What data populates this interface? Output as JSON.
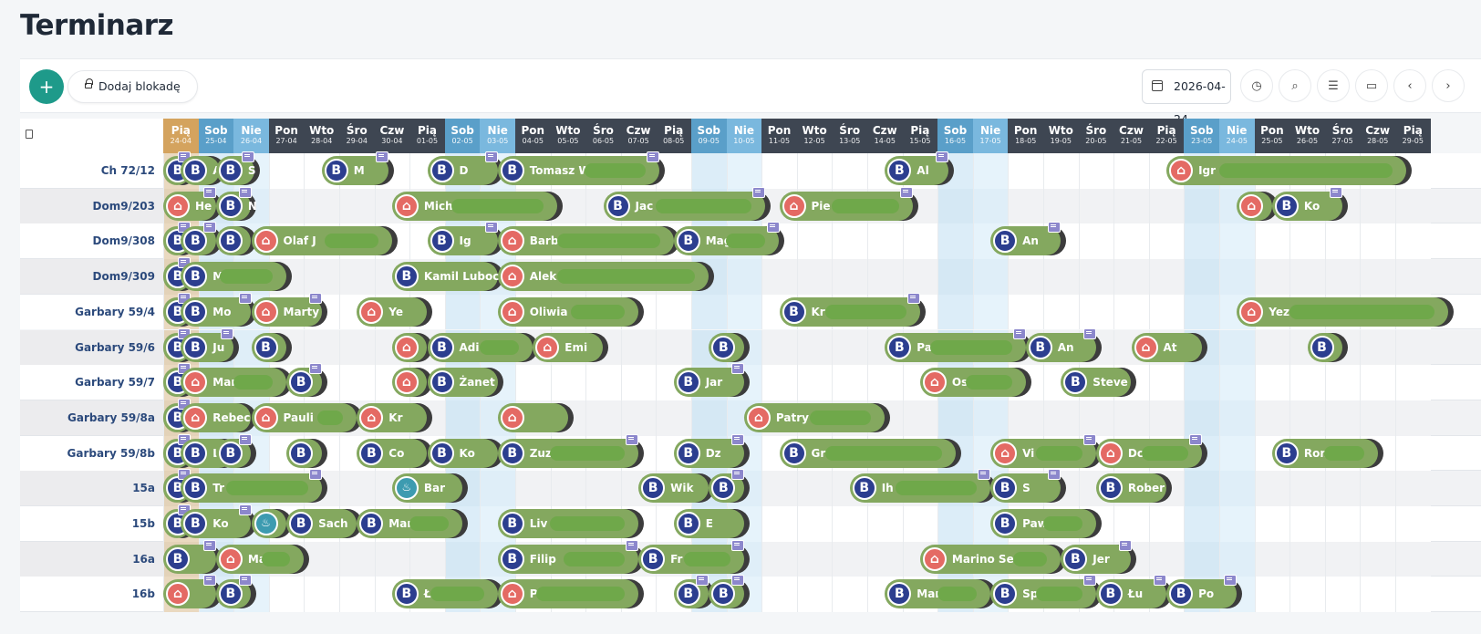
{
  "title": "Terminarz",
  "toolbar": {
    "add_label": "+",
    "block_label": "Dodaj blokadę",
    "date_value": "2026-04-24",
    "icons": [
      "history-icon",
      "search-icon",
      "filter-icon",
      "expand-icon",
      "prev-icon",
      "next-icon"
    ]
  },
  "colors": {
    "accent": "#1e9a8a",
    "weekday_header": "#3e4652",
    "saturday_header": "#5a9fc9",
    "sunday_header": "#7ab8de",
    "today_header": "#d4a35e",
    "booking_bar": "#84a85f",
    "booking_source": "#2c3e8f",
    "airbnb_source": "#e46a64"
  },
  "days": [
    {
      "name": "Pią",
      "date": "24-04",
      "kind": "today"
    },
    {
      "name": "Sob",
      "date": "25-04",
      "kind": "sat"
    },
    {
      "name": "Nie",
      "date": "26-04",
      "kind": "sun"
    },
    {
      "name": "Pon",
      "date": "27-04",
      "kind": "wd"
    },
    {
      "name": "Wto",
      "date": "28-04",
      "kind": "wd"
    },
    {
      "name": "Śro",
      "date": "29-04",
      "kind": "wd"
    },
    {
      "name": "Czw",
      "date": "30-04",
      "kind": "wd"
    },
    {
      "name": "Pią",
      "date": "01-05",
      "kind": "wd"
    },
    {
      "name": "Sob",
      "date": "02-05",
      "kind": "sat"
    },
    {
      "name": "Nie",
      "date": "03-05",
      "kind": "sun"
    },
    {
      "name": "Pon",
      "date": "04-05",
      "kind": "wd"
    },
    {
      "name": "Wto",
      "date": "05-05",
      "kind": "wd"
    },
    {
      "name": "Śro",
      "date": "06-05",
      "kind": "wd"
    },
    {
      "name": "Czw",
      "date": "07-05",
      "kind": "wd"
    },
    {
      "name": "Pią",
      "date": "08-05",
      "kind": "wd"
    },
    {
      "name": "Sob",
      "date": "09-05",
      "kind": "sat"
    },
    {
      "name": "Nie",
      "date": "10-05",
      "kind": "sun"
    },
    {
      "name": "Pon",
      "date": "11-05",
      "kind": "wd"
    },
    {
      "name": "Wto",
      "date": "12-05",
      "kind": "wd"
    },
    {
      "name": "Śro",
      "date": "13-05",
      "kind": "wd"
    },
    {
      "name": "Czw",
      "date": "14-05",
      "kind": "wd"
    },
    {
      "name": "Pią",
      "date": "15-05",
      "kind": "wd"
    },
    {
      "name": "Sob",
      "date": "16-05",
      "kind": "sat"
    },
    {
      "name": "Nie",
      "date": "17-05",
      "kind": "sun"
    },
    {
      "name": "Pon",
      "date": "18-05",
      "kind": "wd"
    },
    {
      "name": "Wto",
      "date": "19-05",
      "kind": "wd"
    },
    {
      "name": "Śro",
      "date": "20-05",
      "kind": "wd"
    },
    {
      "name": "Czw",
      "date": "21-05",
      "kind": "wd"
    },
    {
      "name": "Pią",
      "date": "22-05",
      "kind": "wd"
    },
    {
      "name": "Sob",
      "date": "23-05",
      "kind": "sat"
    },
    {
      "name": "Nie",
      "date": "24-05",
      "kind": "sun"
    },
    {
      "name": "Pon",
      "date": "25-05",
      "kind": "wd"
    },
    {
      "name": "Wto",
      "date": "26-05",
      "kind": "wd"
    },
    {
      "name": "Śro",
      "date": "27-05",
      "kind": "wd"
    },
    {
      "name": "Czw",
      "date": "28-05",
      "kind": "wd"
    },
    {
      "name": "Pią",
      "date": "29-05",
      "kind": "wd"
    }
  ],
  "rooms": [
    {
      "name": "Ch 72/12",
      "bookings": [
        {
          "start": 0,
          "len": 0.6,
          "src": "booking",
          "name": "",
          "note": true
        },
        {
          "start": 0.5,
          "len": 1.1,
          "src": "booking",
          "name": "A",
          "note": false
        },
        {
          "start": 1.5,
          "len": 1.1,
          "src": "booking",
          "name": "S",
          "note": true
        },
        {
          "start": 4.5,
          "len": 1.9,
          "src": "booking",
          "name": "M",
          "note": true
        },
        {
          "start": 7.5,
          "len": 2.0,
          "src": "booking",
          "name": "D",
          "note": true
        },
        {
          "start": 9.5,
          "len": 4.6,
          "src": "booking",
          "name": "Tomasz W",
          "note": true
        },
        {
          "start": 20.5,
          "len": 1.8,
          "src": "booking",
          "name": "Al",
          "note": true
        },
        {
          "start": 28.5,
          "len": 6.8,
          "src": "airbnb",
          "name": "Igr",
          "note": false
        }
      ]
    },
    {
      "name": "Dom9/203",
      "bookings": [
        {
          "start": 0,
          "len": 1.5,
          "src": "airbnb",
          "name": "He",
          "note": true
        },
        {
          "start": 1.5,
          "len": 1.0,
          "src": "booking",
          "name": "N",
          "note": true
        },
        {
          "start": 6.5,
          "len": 4.7,
          "src": "airbnb",
          "name": "Mich",
          "note": false
        },
        {
          "start": 12.5,
          "len": 4.6,
          "src": "booking",
          "name": "Jac",
          "note": true
        },
        {
          "start": 17.5,
          "len": 3.8,
          "src": "airbnb",
          "name": "Pie",
          "note": true
        },
        {
          "start": 30.5,
          "len": 1.0,
          "src": "airbnb",
          "name": "",
          "note": false
        },
        {
          "start": 31.5,
          "len": 2.0,
          "src": "booking",
          "name": "Ko",
          "note": true
        }
      ]
    },
    {
      "name": "Dom9/308",
      "bookings": [
        {
          "start": 0,
          "len": 0.6,
          "src": "booking",
          "name": "",
          "note": true
        },
        {
          "start": 0.5,
          "len": 1.0,
          "src": "booking",
          "name": "",
          "note": true
        },
        {
          "start": 1.5,
          "len": 1.0,
          "src": "booking",
          "name": "",
          "note": false
        },
        {
          "start": 2.5,
          "len": 4.0,
          "src": "airbnb",
          "name": "Olaf J",
          "note": false
        },
        {
          "start": 7.5,
          "len": 2.0,
          "src": "booking",
          "name": "Ig",
          "note": true
        },
        {
          "start": 9.5,
          "len": 5.0,
          "src": "airbnb",
          "name": "Barb",
          "note": false
        },
        {
          "start": 14.5,
          "len": 3.0,
          "src": "booking",
          "name": "Mag",
          "note": true
        },
        {
          "start": 23.5,
          "len": 2.0,
          "src": "booking",
          "name": "An",
          "note": true
        }
      ]
    },
    {
      "name": "Dom9/309",
      "bookings": [
        {
          "start": 0,
          "len": 0.6,
          "src": "booking",
          "name": "",
          "note": true
        },
        {
          "start": 0.5,
          "len": 3.0,
          "src": "booking",
          "name": "M",
          "note": false
        },
        {
          "start": 6.5,
          "len": 3.0,
          "src": "booking",
          "name": "Kamil Lubocki",
          "note": false
        },
        {
          "start": 9.5,
          "len": 6.0,
          "src": "airbnb",
          "name": "Alek",
          "note": false
        }
      ]
    },
    {
      "name": "Garbary 59/4",
      "bookings": [
        {
          "start": 0,
          "len": 0.6,
          "src": "booking",
          "name": "",
          "note": true
        },
        {
          "start": 0.5,
          "len": 2.0,
          "src": "booking",
          "name": "Mo",
          "note": true
        },
        {
          "start": 2.5,
          "len": 2.0,
          "src": "airbnb",
          "name": "Marty",
          "note": true
        },
        {
          "start": 5.5,
          "len": 2.0,
          "src": "airbnb",
          "name": "Ye",
          "note": false
        },
        {
          "start": 9.5,
          "len": 4.0,
          "src": "airbnb",
          "name": "Oliwia",
          "note": false
        },
        {
          "start": 17.5,
          "len": 4.0,
          "src": "booking",
          "name": "Kr",
          "note": true
        },
        {
          "start": 30.5,
          "len": 6.0,
          "src": "airbnb",
          "name": "Yez",
          "note": false
        }
      ]
    },
    {
      "name": "Garbary 59/6",
      "bookings": [
        {
          "start": 0,
          "len": 0.6,
          "src": "booking",
          "name": "",
          "note": true
        },
        {
          "start": 0.5,
          "len": 1.5,
          "src": "booking",
          "name": "Ju",
          "note": true
        },
        {
          "start": 2.5,
          "len": 1.0,
          "src": "booking",
          "name": "",
          "note": false
        },
        {
          "start": 6.5,
          "len": 1.0,
          "src": "airbnb",
          "name": "",
          "note": false
        },
        {
          "start": 7.5,
          "len": 3.0,
          "src": "booking",
          "name": "Adi",
          "note": false
        },
        {
          "start": 10.5,
          "len": 2.0,
          "src": "airbnb",
          "name": "Emi",
          "note": false
        },
        {
          "start": 15.5,
          "len": 1.0,
          "src": "booking",
          "name": "",
          "note": false
        },
        {
          "start": 20.5,
          "len": 4.0,
          "src": "booking",
          "name": "Pa",
          "note": true
        },
        {
          "start": 24.5,
          "len": 2.0,
          "src": "booking",
          "name": "An",
          "note": true
        },
        {
          "start": 27.5,
          "len": 2.0,
          "src": "airbnb",
          "name": "At",
          "note": false
        },
        {
          "start": 32.5,
          "len": 1.0,
          "src": "booking",
          "name": "",
          "note": false
        }
      ]
    },
    {
      "name": "Garbary 59/7",
      "bookings": [
        {
          "start": 0,
          "len": 0.6,
          "src": "booking",
          "name": "",
          "note": true
        },
        {
          "start": 0.5,
          "len": 3.0,
          "src": "airbnb",
          "name": "Mar",
          "note": false
        },
        {
          "start": 3.5,
          "len": 1.0,
          "src": "booking",
          "name": "",
          "note": true
        },
        {
          "start": 6.5,
          "len": 1.0,
          "src": "airbnb",
          "name": "",
          "note": false
        },
        {
          "start": 7.5,
          "len": 2.0,
          "src": "booking",
          "name": "Żanet",
          "note": false
        },
        {
          "start": 14.5,
          "len": 2.0,
          "src": "booking",
          "name": "Jar",
          "note": true
        },
        {
          "start": 21.5,
          "len": 3.0,
          "src": "airbnb",
          "name": "Os",
          "note": false
        },
        {
          "start": 25.5,
          "len": 2.0,
          "src": "booking",
          "name": "Steve",
          "note": false
        }
      ]
    },
    {
      "name": "Garbary 59/8a",
      "bookings": [
        {
          "start": 0,
          "len": 0.6,
          "src": "booking",
          "name": "",
          "note": true
        },
        {
          "start": 0.5,
          "len": 2.0,
          "src": "airbnb",
          "name": "Rebec",
          "note": false
        },
        {
          "start": 2.5,
          "len": 3.0,
          "src": "airbnb",
          "name": "Pauli",
          "note": false
        },
        {
          "start": 5.5,
          "len": 2.0,
          "src": "airbnb",
          "name": "Kr",
          "note": false
        },
        {
          "start": 9.5,
          "len": 2.0,
          "src": "airbnb",
          "name": "",
          "note": false
        },
        {
          "start": 16.5,
          "len": 4.0,
          "src": "airbnb",
          "name": "Patry",
          "note": false
        }
      ]
    },
    {
      "name": "Garbary 59/8b",
      "bookings": [
        {
          "start": 0,
          "len": 0.6,
          "src": "booking",
          "name": "",
          "note": true
        },
        {
          "start": 0.5,
          "len": 1.5,
          "src": "booking",
          "name": "Lu",
          "note": false
        },
        {
          "start": 1.5,
          "len": 1.0,
          "src": "booking",
          "name": "",
          "note": true
        },
        {
          "start": 3.5,
          "len": 1.0,
          "src": "booking",
          "name": "",
          "note": false
        },
        {
          "start": 5.5,
          "len": 2.0,
          "src": "booking",
          "name": "Co",
          "note": false
        },
        {
          "start": 7.5,
          "len": 2.0,
          "src": "booking",
          "name": "Ko",
          "note": false
        },
        {
          "start": 9.5,
          "len": 4.0,
          "src": "booking",
          "name": "Zuz",
          "note": true
        },
        {
          "start": 14.5,
          "len": 2.0,
          "src": "booking",
          "name": "Dz",
          "note": true
        },
        {
          "start": 17.5,
          "len": 5.0,
          "src": "booking",
          "name": "Gr",
          "note": false
        },
        {
          "start": 23.5,
          "len": 3.0,
          "src": "airbnb",
          "name": "Vi",
          "note": true
        },
        {
          "start": 26.5,
          "len": 3.0,
          "src": "airbnb",
          "name": "Do",
          "note": true
        },
        {
          "start": 31.5,
          "len": 3.0,
          "src": "booking",
          "name": "Ron",
          "note": false
        }
      ]
    },
    {
      "name": "15a",
      "bookings": [
        {
          "start": 0,
          "len": 0.6,
          "src": "booking",
          "name": "",
          "note": true
        },
        {
          "start": 0.5,
          "len": 4.0,
          "src": "booking",
          "name": "Tr",
          "note": true
        },
        {
          "start": 6.5,
          "len": 2.0,
          "src": "bell",
          "name": "Bar",
          "note": false
        },
        {
          "start": 13.5,
          "len": 2.0,
          "src": "booking",
          "name": "Wik",
          "note": false
        },
        {
          "start": 15.5,
          "len": 1.0,
          "src": "booking",
          "name": "",
          "note": true
        },
        {
          "start": 19.5,
          "len": 4.0,
          "src": "booking",
          "name": "Ih",
          "note": true
        },
        {
          "start": 23.5,
          "len": 2.0,
          "src": "booking",
          "name": "S",
          "note": true
        },
        {
          "start": 26.5,
          "len": 2.0,
          "src": "booking",
          "name": "Rober",
          "note": false
        }
      ]
    },
    {
      "name": "15b",
      "bookings": [
        {
          "start": 0,
          "len": 0.6,
          "src": "booking",
          "name": "",
          "note": true
        },
        {
          "start": 0.5,
          "len": 2.0,
          "src": "booking",
          "name": "Ko",
          "note": true
        },
        {
          "start": 2.5,
          "len": 1.0,
          "src": "bell",
          "name": "",
          "note": false
        },
        {
          "start": 3.5,
          "len": 2.0,
          "src": "booking",
          "name": "Sach",
          "note": false
        },
        {
          "start": 5.5,
          "len": 3.0,
          "src": "booking",
          "name": "Mar",
          "note": false
        },
        {
          "start": 9.5,
          "len": 4.0,
          "src": "booking",
          "name": "Liv",
          "note": false
        },
        {
          "start": 14.5,
          "len": 2.0,
          "src": "booking",
          "name": "E",
          "note": false
        },
        {
          "start": 23.5,
          "len": 3.0,
          "src": "booking",
          "name": "Paw",
          "note": false
        }
      ]
    },
    {
      "name": "16a",
      "bookings": [
        {
          "start": 0,
          "len": 1.5,
          "src": "booking",
          "name": "",
          "note": true
        },
        {
          "start": 1.5,
          "len": 2.5,
          "src": "airbnb",
          "name": "Ma",
          "note": false
        },
        {
          "start": 9.5,
          "len": 4.0,
          "src": "booking",
          "name": "Filip",
          "note": true
        },
        {
          "start": 13.5,
          "len": 3.0,
          "src": "booking",
          "name": "Fr",
          "note": true
        },
        {
          "start": 21.5,
          "len": 4.0,
          "src": "airbnb",
          "name": "Marino Se",
          "note": false
        },
        {
          "start": 25.5,
          "len": 2.0,
          "src": "booking",
          "name": "Jer",
          "note": true
        }
      ]
    },
    {
      "name": "16b",
      "bookings": [
        {
          "start": 0,
          "len": 1.5,
          "src": "airbnb",
          "name": "",
          "note": true
        },
        {
          "start": 1.5,
          "len": 1.0,
          "src": "booking",
          "name": "",
          "note": true
        },
        {
          "start": 6.5,
          "len": 3.0,
          "src": "booking",
          "name": "Ł",
          "note": false
        },
        {
          "start": 9.5,
          "len": 4.0,
          "src": "airbnb",
          "name": "P",
          "note": false
        },
        {
          "start": 14.5,
          "len": 1.0,
          "src": "booking",
          "name": "",
          "note": true
        },
        {
          "start": 15.5,
          "len": 1.0,
          "src": "booking",
          "name": "",
          "note": true
        },
        {
          "start": 20.5,
          "len": 3.0,
          "src": "booking",
          "name": "Mar",
          "note": false
        },
        {
          "start": 23.5,
          "len": 3.0,
          "src": "booking",
          "name": "Sp",
          "note": true
        },
        {
          "start": 26.5,
          "len": 2.0,
          "src": "booking",
          "name": "Łu",
          "note": true
        },
        {
          "start": 28.5,
          "len": 2.0,
          "src": "booking",
          "name": "Po",
          "note": true
        }
      ]
    }
  ]
}
